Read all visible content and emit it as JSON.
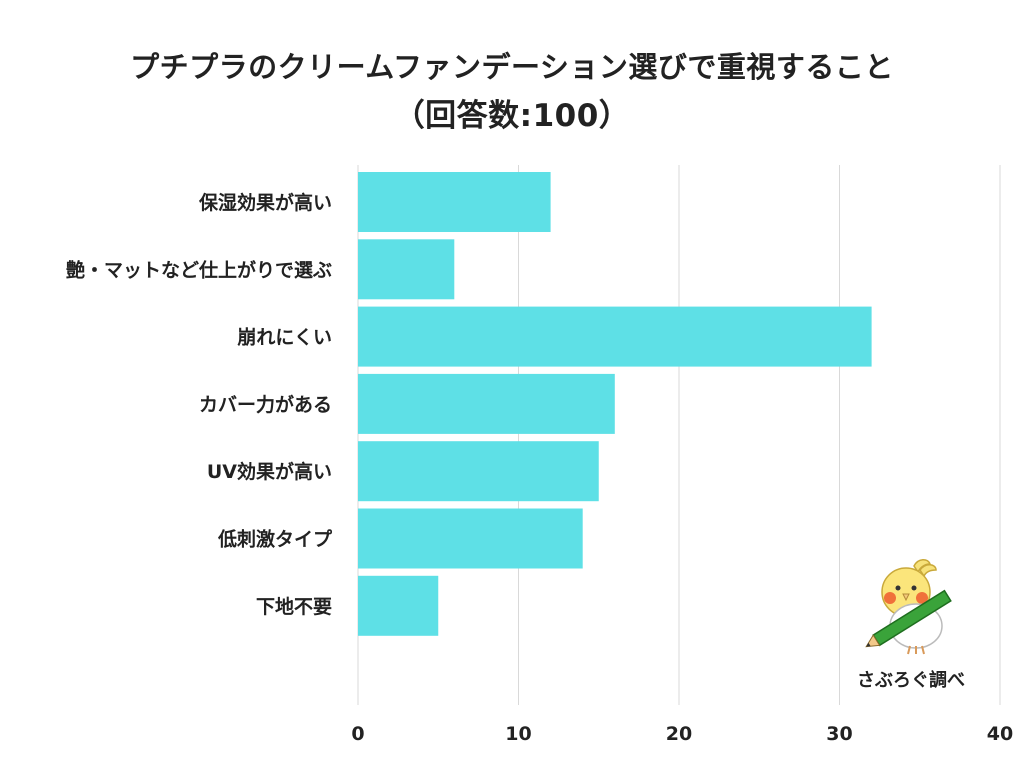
{
  "title": {
    "line1": "プチプラのクリームファンデーション選びで重視すること",
    "line2": "（回答数:100）"
  },
  "chart_data": {
    "type": "bar",
    "orientation": "horizontal",
    "categories": [
      "保湿効果が高い",
      "艶・マットなど仕上がりで選ぶ",
      "崩れにくい",
      "カバー力がある",
      "UV効果が高い",
      "低刺激タイプ",
      "下地不要"
    ],
    "values": [
      12,
      6,
      32,
      16,
      15,
      14,
      5
    ],
    "xlim": [
      0,
      40
    ],
    "xticks": [
      0,
      10,
      20,
      30,
      40
    ],
    "grid": true,
    "bar_color": "#5ee0e6",
    "grid_color": "#d9d9d9"
  },
  "credit": {
    "text": "さぶろぐ調べ",
    "icon": "bird-with-pencil-icon"
  }
}
